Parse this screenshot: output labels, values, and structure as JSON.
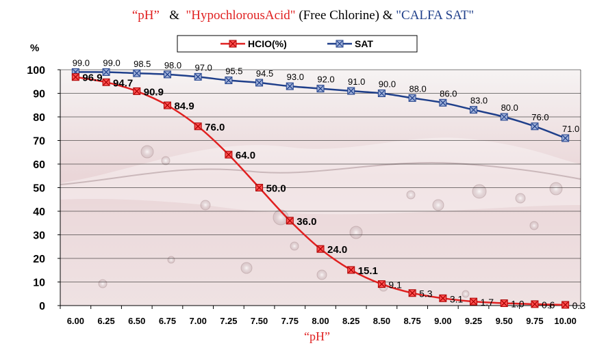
{
  "title": {
    "part1": "“pH”",
    "amp1": "&",
    "part2": "\"HypochlorousAcid\"",
    "part3": "(Free Chlorine) &",
    "part4": "\"CALFA SAT\""
  },
  "colors": {
    "hclo": "#e02020",
    "sat": "#1f3f8a",
    "title_red": "#e02020",
    "title_blue": "#1f3f8a",
    "grid": "#000000"
  },
  "chart_data": {
    "type": "line",
    "xlabel": "“pH”",
    "ylabel": "%",
    "ylim": [
      0,
      100
    ],
    "yticks": [
      0,
      10,
      20,
      30,
      40,
      50,
      60,
      70,
      80,
      90,
      100
    ],
    "grid": true,
    "legend_position": "top-center",
    "categories": [
      "6.00",
      "6.25",
      "6.50",
      "6.75",
      "7.00",
      "7.25",
      "7.50",
      "7.75",
      "8.00",
      "8.25",
      "8.50",
      "8.75",
      "9.00",
      "9.25",
      "9.50",
      "9.75",
      "10.00"
    ],
    "series": [
      {
        "name": "HCIO(%)",
        "marker": "square-x",
        "values": [
          96.9,
          94.7,
          90.9,
          84.9,
          76.0,
          64.0,
          50.0,
          36.0,
          24.0,
          15.1,
          9.1,
          5.3,
          3.1,
          1.7,
          1.0,
          0.6,
          0.3
        ],
        "labels": [
          "96.9",
          "94.7",
          "90.9",
          "84.9",
          "76.0",
          "64.0",
          "50.0",
          "36.0",
          "24.0",
          "15.1",
          "9.1",
          "5.3",
          "3.1",
          "1.7",
          "1.0",
          "0.6",
          "0.3"
        ]
      },
      {
        "name": "SAT",
        "marker": "square-x",
        "values": [
          99.0,
          99.0,
          98.5,
          98.0,
          97.0,
          95.5,
          94.5,
          93.0,
          92.0,
          91.0,
          90.0,
          88.0,
          86.0,
          83.0,
          80.0,
          76.0,
          71.0
        ],
        "labels": [
          "99.0",
          "99.0",
          "98.5",
          "98.0",
          "97.0",
          "95.5",
          "94.5",
          "93.0",
          "92.0",
          "91.0",
          "90.0",
          "88.0",
          "86.0",
          "83.0",
          "80.0",
          "76.0",
          "71.0"
        ]
      }
    ]
  }
}
